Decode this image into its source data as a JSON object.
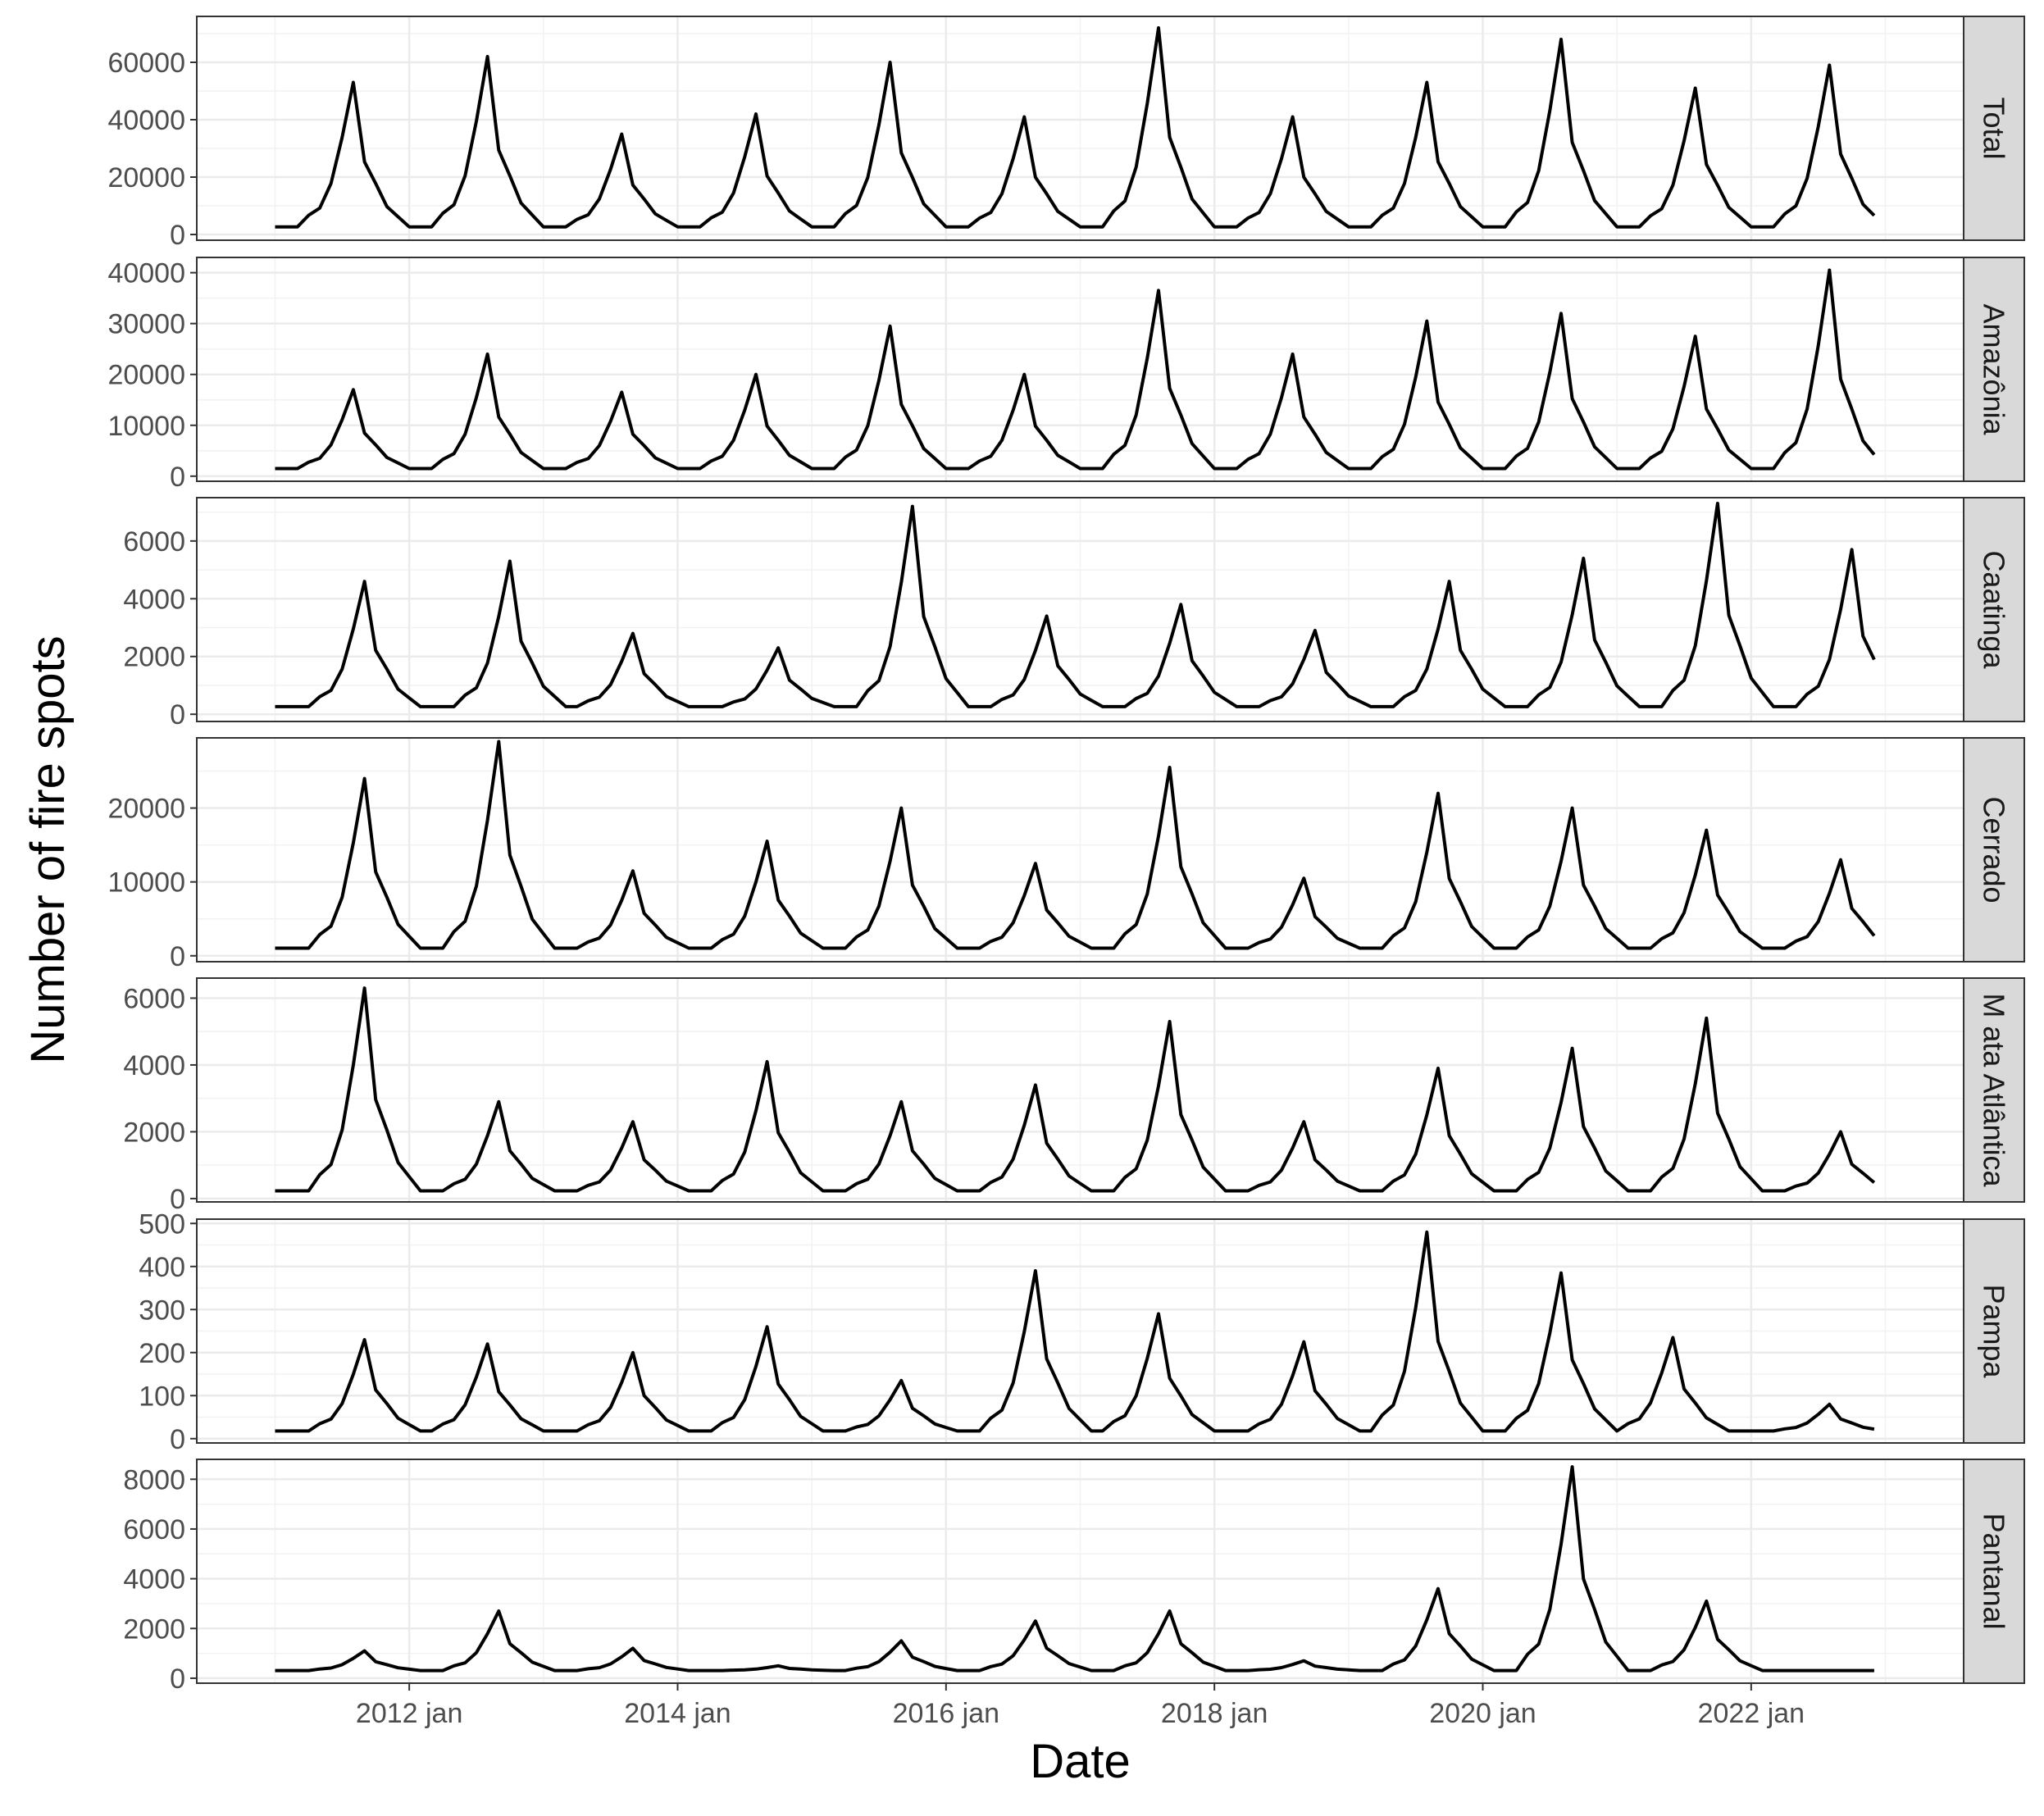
{
  "chart_data": {
    "type": "line",
    "facet": "rows",
    "xlabel": "Date",
    "ylabel": "Number of fire spots",
    "x_start": "2011-01",
    "x_end": "2022-12",
    "x_ticks": [
      {
        "date": "2012-01",
        "label": "2012 jan"
      },
      {
        "date": "2014-01",
        "label": "2014 jan"
      },
      {
        "date": "2016-01",
        "label": "2016 jan"
      },
      {
        "date": "2018-01",
        "label": "2018 jan"
      },
      {
        "date": "2020-01",
        "label": "2020 jan"
      },
      {
        "date": "2022-01",
        "label": "2022 jan"
      }
    ],
    "x_range": [
      "2010-06",
      "2023-08"
    ],
    "grid": true,
    "panels": [
      {
        "strip": "Total",
        "ylim": [
          -2000,
          76000
        ],
        "yticks": [
          0,
          20000,
          40000,
          60000
        ],
        "ytick_labels": [
          "0",
          "20000",
          "40000",
          "60000"
        ],
        "peaks": [
          {
            "date": "2011-08",
            "value": 53000
          },
          {
            "date": "2012-08",
            "value": 62000
          },
          {
            "date": "2013-08",
            "value": 35000
          },
          {
            "date": "2014-08",
            "value": 42000
          },
          {
            "date": "2015-08",
            "value": 60000
          },
          {
            "date": "2016-08",
            "value": 41000
          },
          {
            "date": "2017-08",
            "value": 72000
          },
          {
            "date": "2018-08",
            "value": 41000
          },
          {
            "date": "2019-08",
            "value": 53000
          },
          {
            "date": "2020-08",
            "value": 68000
          },
          {
            "date": "2021-08",
            "value": 51000
          },
          {
            "date": "2022-08",
            "value": 59000
          }
        ]
      },
      {
        "strip": "Amazônia",
        "ylim": [
          -1000,
          43000
        ],
        "yticks": [
          0,
          10000,
          20000,
          30000,
          40000
        ],
        "ytick_labels": [
          "0",
          "10000",
          "20000",
          "30000",
          "40000"
        ],
        "peaks": [
          {
            "date": "2011-08",
            "value": 17000
          },
          {
            "date": "2012-08",
            "value": 24000
          },
          {
            "date": "2013-08",
            "value": 16500
          },
          {
            "date": "2014-08",
            "value": 20000
          },
          {
            "date": "2015-08",
            "value": 29500
          },
          {
            "date": "2016-08",
            "value": 20000
          },
          {
            "date": "2017-08",
            "value": 36500
          },
          {
            "date": "2018-08",
            "value": 24000
          },
          {
            "date": "2019-08",
            "value": 30500
          },
          {
            "date": "2020-08",
            "value": 32000
          },
          {
            "date": "2021-08",
            "value": 27500
          },
          {
            "date": "2022-08",
            "value": 40500
          }
        ]
      },
      {
        "strip": "Caatinga",
        "ylim": [
          -250,
          7500
        ],
        "yticks": [
          0,
          2000,
          4000,
          6000
        ],
        "ytick_labels": [
          "0",
          "2000",
          "4000",
          "6000"
        ],
        "peaks": [
          {
            "date": "2011-09",
            "value": 4600
          },
          {
            "date": "2012-10",
            "value": 5300
          },
          {
            "date": "2013-09",
            "value": 2800
          },
          {
            "date": "2014-10",
            "value": 2300
          },
          {
            "date": "2015-10",
            "value": 7200
          },
          {
            "date": "2016-10",
            "value": 3400
          },
          {
            "date": "2017-10",
            "value": 3800
          },
          {
            "date": "2018-10",
            "value": 2900
          },
          {
            "date": "2019-10",
            "value": 4600
          },
          {
            "date": "2020-10",
            "value": 5400
          },
          {
            "date": "2021-10",
            "value": 7300
          },
          {
            "date": "2022-10",
            "value": 5700
          }
        ]
      },
      {
        "strip": "Cerrado",
        "ylim": [
          -800,
          29500
        ],
        "yticks": [
          0,
          10000,
          20000
        ],
        "ytick_labels": [
          "0",
          "10000",
          "20000"
        ],
        "peaks": [
          {
            "date": "2011-09",
            "value": 24000
          },
          {
            "date": "2012-09",
            "value": 29000
          },
          {
            "date": "2013-09",
            "value": 11500
          },
          {
            "date": "2014-09",
            "value": 15500
          },
          {
            "date": "2015-09",
            "value": 20000
          },
          {
            "date": "2016-09",
            "value": 12500
          },
          {
            "date": "2017-09",
            "value": 25500
          },
          {
            "date": "2018-09",
            "value": 10500
          },
          {
            "date": "2019-09",
            "value": 22000
          },
          {
            "date": "2020-09",
            "value": 20000
          },
          {
            "date": "2021-09",
            "value": 17000
          },
          {
            "date": "2022-09",
            "value": 13000
          }
        ]
      },
      {
        "strip": "M ata Atlântica",
        "ylim": [
          -100,
          6600
        ],
        "yticks": [
          0,
          2000,
          4000,
          6000
        ],
        "ytick_labels": [
          "0",
          "2000",
          "4000",
          "6000"
        ],
        "peaks": [
          {
            "date": "2011-09",
            "value": 6300
          },
          {
            "date": "2012-09",
            "value": 2900
          },
          {
            "date": "2013-09",
            "value": 2300
          },
          {
            "date": "2014-09",
            "value": 4100
          },
          {
            "date": "2015-09",
            "value": 2900
          },
          {
            "date": "2016-09",
            "value": 3400
          },
          {
            "date": "2017-09",
            "value": 5300
          },
          {
            "date": "2018-09",
            "value": 2300
          },
          {
            "date": "2019-09",
            "value": 3900
          },
          {
            "date": "2020-09",
            "value": 4500
          },
          {
            "date": "2021-09",
            "value": 5400
          },
          {
            "date": "2022-09",
            "value": 2000
          }
        ]
      },
      {
        "strip": "Pampa",
        "ylim": [
          -10,
          510
        ],
        "yticks": [
          0,
          100,
          200,
          300,
          400,
          500
        ],
        "ytick_labels": [
          "0",
          "100",
          "200",
          "300",
          "400",
          "500"
        ],
        "peaks": [
          {
            "date": "2011-09",
            "value": 230
          },
          {
            "date": "2012-08",
            "value": 220
          },
          {
            "date": "2013-09",
            "value": 200
          },
          {
            "date": "2014-09",
            "value": 260
          },
          {
            "date": "2015-09",
            "value": 135
          },
          {
            "date": "2016-09",
            "value": 390
          },
          {
            "date": "2017-08",
            "value": 290
          },
          {
            "date": "2018-09",
            "value": 225
          },
          {
            "date": "2019-08",
            "value": 480
          },
          {
            "date": "2020-08",
            "value": 385
          },
          {
            "date": "2021-06",
            "value": 235
          },
          {
            "date": "2022-08",
            "value": 80
          }
        ]
      },
      {
        "strip": "Pantanal",
        "ylim": [
          -200,
          8800
        ],
        "yticks": [
          0,
          2000,
          4000,
          6000,
          8000
        ],
        "ytick_labels": [
          "0",
          "2000",
          "4000",
          "6000",
          "8000"
        ],
        "peaks": [
          {
            "date": "2011-09",
            "value": 1100
          },
          {
            "date": "2012-09",
            "value": 2700
          },
          {
            "date": "2013-09",
            "value": 1200
          },
          {
            "date": "2014-10",
            "value": 500
          },
          {
            "date": "2015-09",
            "value": 1500
          },
          {
            "date": "2016-09",
            "value": 2300
          },
          {
            "date": "2017-09",
            "value": 2700
          },
          {
            "date": "2018-09",
            "value": 700
          },
          {
            "date": "2019-09",
            "value": 3600
          },
          {
            "date": "2020-09",
            "value": 8500
          },
          {
            "date": "2021-09",
            "value": 3100
          },
          {
            "date": "2022-09",
            "value": 300
          }
        ]
      }
    ]
  }
}
